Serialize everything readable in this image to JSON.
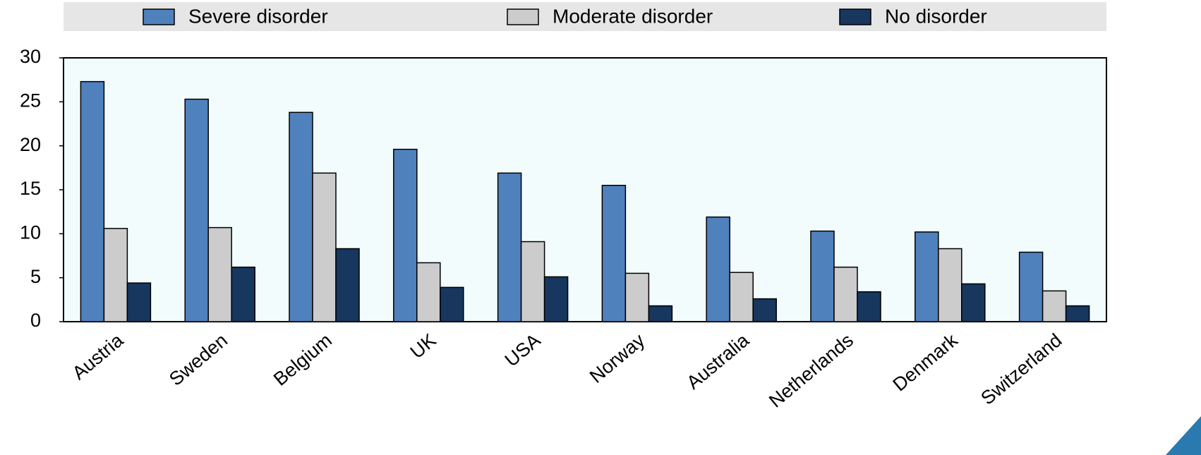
{
  "chart_data": {
    "type": "bar",
    "categories": [
      "Austria",
      "Sweden",
      "Belgium",
      "UK",
      "USA",
      "Norway",
      "Australia",
      "Netherlands",
      "Denmark",
      "Switzerland"
    ],
    "series": [
      {
        "name": "Severe disorder",
        "color": "#4f81bd",
        "values": [
          27.3,
          25.3,
          23.8,
          19.6,
          16.9,
          15.5,
          11.9,
          10.3,
          10.2,
          7.9
        ]
      },
      {
        "name": "Moderate disorder",
        "color": "#cccccc",
        "values": [
          10.6,
          10.7,
          16.9,
          6.7,
          9.1,
          5.5,
          5.6,
          6.2,
          8.3,
          3.5
        ]
      },
      {
        "name": "No disorder",
        "color": "#17375e",
        "values": [
          4.4,
          6.2,
          8.3,
          3.9,
          5.1,
          1.8,
          2.6,
          3.4,
          4.3,
          1.8
        ]
      }
    ],
    "ylim": [
      0,
      30
    ],
    "yticks": [
      0,
      5,
      10,
      15,
      20,
      25,
      30
    ],
    "grid": false,
    "legend": "top"
  }
}
